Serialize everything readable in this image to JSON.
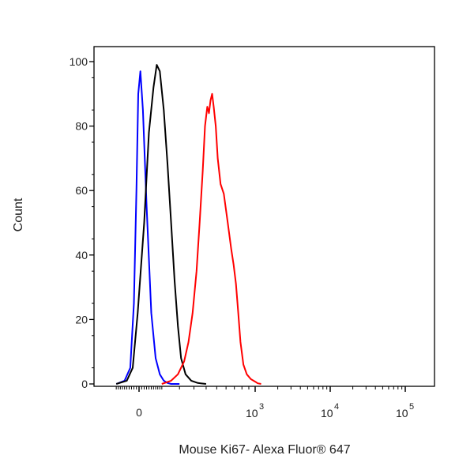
{
  "chart_data": {
    "type": "line",
    "title": "",
    "xlabel": "Mouse Ki67- Alexa Fluor® 647",
    "ylabel": "Count",
    "x_scale": "biexponential",
    "ylim": [
      0,
      100
    ],
    "y_ticks": [
      {
        "value": 0,
        "label": "0"
      },
      {
        "value": 20,
        "label": "20"
      },
      {
        "value": 40,
        "label": "40"
      },
      {
        "value": 60,
        "label": "60"
      },
      {
        "value": 80,
        "label": "80"
      },
      {
        "value": 100,
        "label": "100"
      }
    ],
    "x_ticks": [
      {
        "value": 0,
        "base": "0",
        "exp": ""
      },
      {
        "value": 1000,
        "base": "10",
        "exp": "3"
      },
      {
        "value": 10000,
        "base": "10",
        "exp": "4"
      },
      {
        "value": 100000,
        "base": "10",
        "exp": "5"
      }
    ],
    "legend": "none",
    "grid": false,
    "series": [
      {
        "color": "#0000ff",
        "x": [
          -100,
          -60,
          -35,
          -20,
          -10,
          -3,
          5,
          15,
          30,
          50,
          70,
          90,
          110,
          130,
          150,
          200
        ],
        "y": [
          0,
          1,
          5,
          25,
          60,
          90,
          97,
          85,
          55,
          22,
          8,
          3,
          1,
          0.3,
          0,
          0
        ]
      },
      {
        "color": "#000000",
        "x": [
          -100,
          -50,
          -25,
          -5,
          20,
          40,
          60,
          75,
          90,
          110,
          130,
          150,
          170,
          190,
          210,
          240,
          280,
          330,
          400
        ],
        "y": [
          0,
          1,
          5,
          22,
          50,
          78,
          92,
          99,
          97,
          85,
          68,
          50,
          32,
          18,
          8,
          3,
          1,
          0.3,
          0
        ]
      },
      {
        "color": "#ff0000",
        "x": [
          100,
          150,
          190,
          230,
          260,
          290,
          320,
          345,
          370,
          390,
          410,
          425,
          440,
          455,
          470,
          490,
          510,
          540,
          575,
          620,
          660,
          690,
          720,
          750,
          780,
          820,
          870,
          930,
          1000,
          1080,
          1200
        ],
        "y": [
          0,
          1,
          3,
          7,
          13,
          22,
          35,
          50,
          66,
          80,
          86,
          84,
          88,
          90,
          86,
          80,
          70,
          62,
          59,
          50,
          42,
          37,
          31,
          22,
          13,
          6,
          3,
          1.5,
          0.7,
          0.2,
          0
        ]
      }
    ]
  }
}
